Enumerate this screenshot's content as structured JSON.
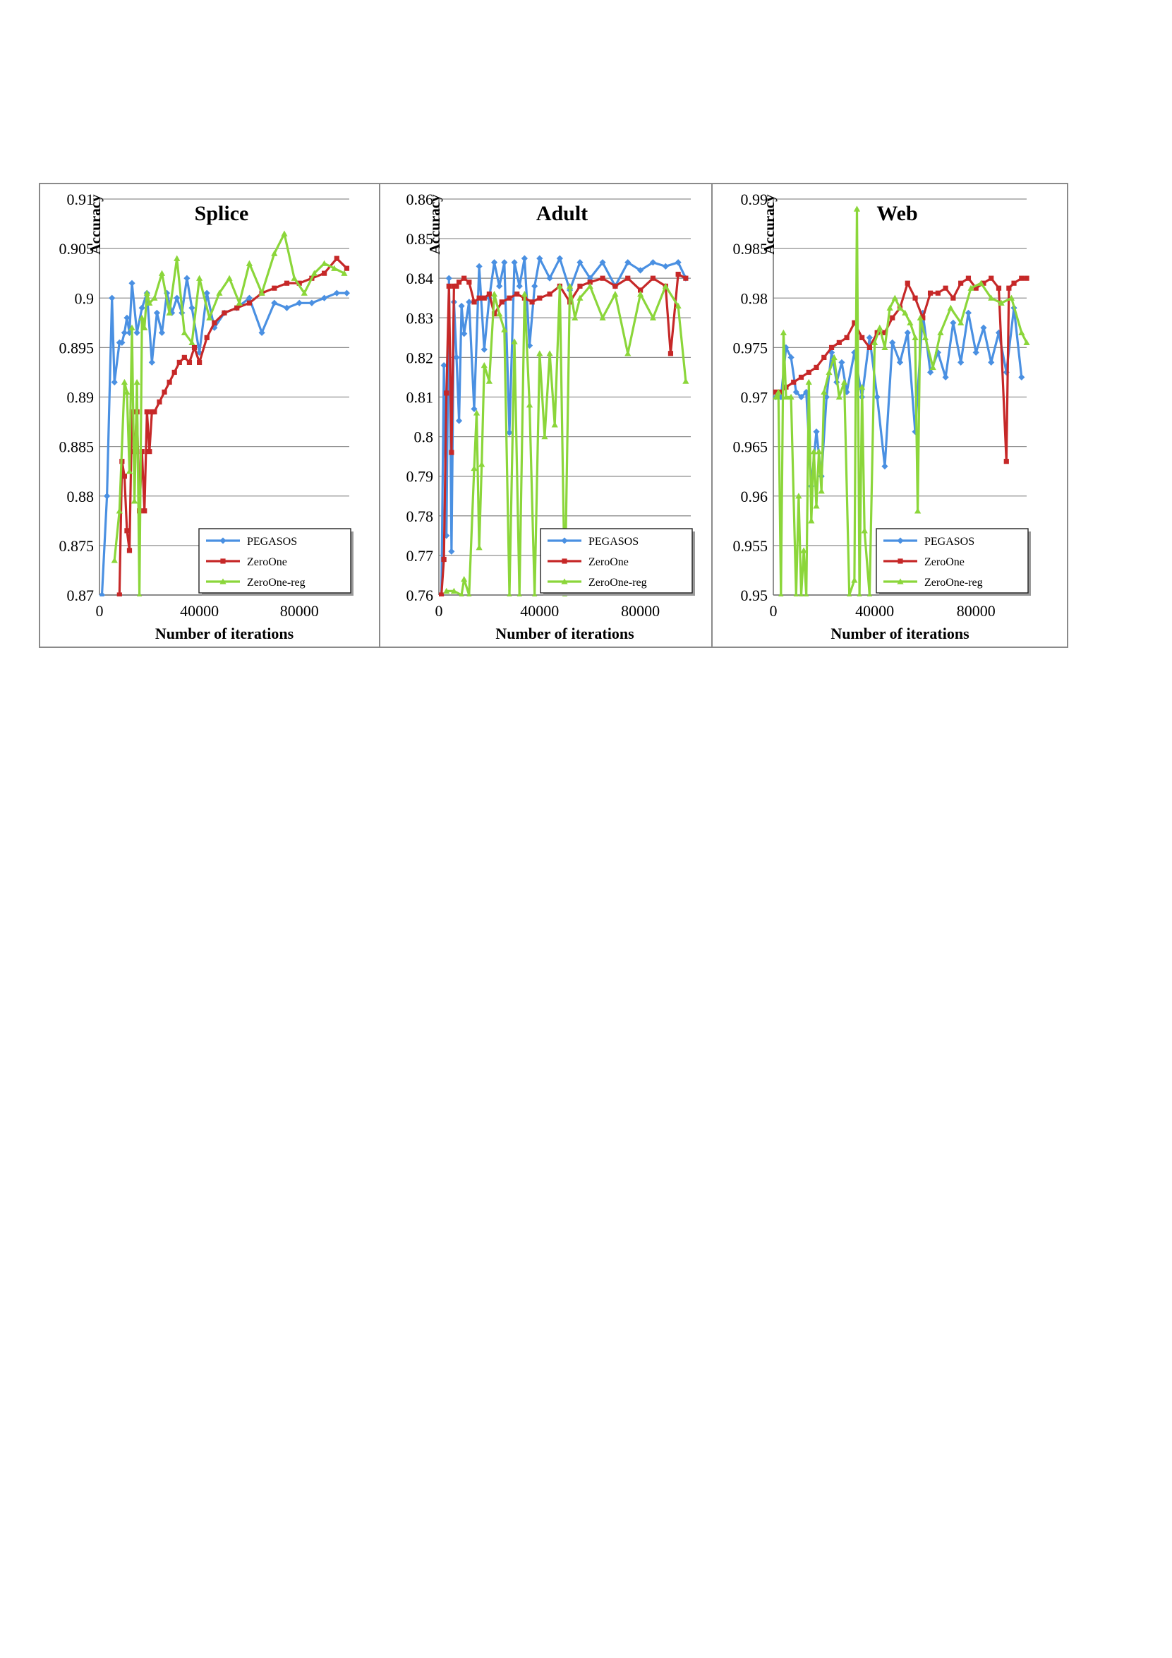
{
  "figure": {
    "chart_data": [
      {
        "type": "line",
        "title": "Splice",
        "xlabel": "Number of iterations",
        "ylabel": "Accuracy",
        "xlim": [
          0,
          100000
        ],
        "ylim": [
          0.87,
          0.91
        ],
        "xticks": [
          0,
          40000,
          80000
        ],
        "xtick_labels": [
          "0",
          "40000",
          "80000"
        ],
        "yticks": [
          0.87,
          0.875,
          0.88,
          0.885,
          0.89,
          0.895,
          0.9,
          0.905,
          0.91
        ],
        "ytick_labels": [
          "0.87",
          "0.875",
          "0.88",
          "0.885",
          "0.89",
          "0.895",
          "0.9",
          "0.905",
          "0.91"
        ],
        "grid": "horizontal",
        "legend": "bottom-right",
        "series": [
          {
            "name": "PEGASOS",
            "color": "#4a90e2",
            "marker": "diamond",
            "x": [
              1000,
              3000,
              5000,
              6000,
              8000,
              9000,
              10000,
              11000,
              12000,
              13000,
              15000,
              17000,
              19000,
              21000,
              23000,
              25000,
              27000,
              29000,
              31000,
              33000,
              35000,
              37000,
              40000,
              43000,
              46000,
              50000,
              55000,
              60000,
              65000,
              70000,
              75000,
              80000,
              85000,
              90000,
              95000,
              99000
            ],
            "y": [
              0.87,
              0.88,
              0.9,
              0.8915,
              0.8955,
              0.8955,
              0.8965,
              0.898,
              0.8965,
              0.9015,
              0.8965,
              0.899,
              0.9005,
              0.8935,
              0.8985,
              0.8965,
              0.9005,
              0.8985,
              0.9,
              0.8985,
              0.902,
              0.899,
              0.8945,
              0.9005,
              0.897,
              0.8985,
              0.899,
              0.9,
              0.8965,
              0.8995,
              0.899,
              0.8995,
              0.8995,
              0.9,
              0.9005,
              0.9005
            ]
          },
          {
            "name": "ZeroOne",
            "color": "#c62828",
            "marker": "square",
            "x": [
              8000,
              9000,
              10000,
              11000,
              12000,
              13000,
              14000,
              15000,
              16000,
              17000,
              18000,
              19000,
              20000,
              21000,
              22000,
              24000,
              26000,
              28000,
              30000,
              32000,
              34000,
              36000,
              38000,
              40000,
              43000,
              46000,
              50000,
              55000,
              60000,
              65000,
              70000,
              75000,
              80000,
              85000,
              90000,
              95000,
              99000
            ],
            "y": [
              0.87,
              0.8835,
              0.882,
              0.8765,
              0.8745,
              0.8885,
              0.8845,
              0.8885,
              0.8785,
              0.8845,
              0.8785,
              0.8885,
              0.8845,
              0.8885,
              0.8885,
              0.8895,
              0.8905,
              0.8915,
              0.8925,
              0.8935,
              0.894,
              0.8935,
              0.895,
              0.8935,
              0.896,
              0.8975,
              0.8985,
              0.899,
              0.8995,
              0.9005,
              0.901,
              0.9015,
              0.9015,
              0.902,
              0.9025,
              0.904,
              0.903
            ]
          },
          {
            "name": "ZeroOne-reg",
            "color": "#8bd63a",
            "marker": "triangle",
            "x": [
              6000,
              8000,
              10000,
              11000,
              12000,
              13000,
              14000,
              15000,
              16000,
              17000,
              18000,
              19000,
              20000,
              22000,
              25000,
              28000,
              31000,
              34000,
              37000,
              40000,
              44000,
              48000,
              52000,
              56000,
              60000,
              65000,
              70000,
              74000,
              78000,
              82000,
              86000,
              90000,
              94000,
              98000
            ],
            "y": [
              0.8735,
              0.8785,
              0.8915,
              0.8905,
              0.8825,
              0.897,
              0.8795,
              0.8915,
              0.87,
              0.898,
              0.897,
              0.9005,
              0.8995,
              0.9,
              0.9025,
              0.8985,
              0.904,
              0.8965,
              0.8955,
              0.902,
              0.898,
              0.9005,
              0.902,
              0.8995,
              0.9035,
              0.9005,
              0.9045,
              0.9065,
              0.902,
              0.9005,
              0.9025,
              0.9035,
              0.903,
              0.9025
            ]
          }
        ],
        "legend_entries": [
          "PEGASOS",
          "ZeroOne",
          "ZeroOne-reg"
        ]
      },
      {
        "type": "line",
        "title": "Adult",
        "xlabel": "Number of iterations",
        "ylabel": "Accuracy",
        "xlim": [
          0,
          100000
        ],
        "ylim": [
          0.76,
          0.86
        ],
        "xticks": [
          0,
          40000,
          80000
        ],
        "xtick_labels": [
          "0",
          "40000",
          "80000"
        ],
        "yticks": [
          0.76,
          0.77,
          0.78,
          0.79,
          0.8,
          0.81,
          0.82,
          0.83,
          0.84,
          0.85,
          0.86
        ],
        "ytick_labels": [
          "0.76",
          "0.77",
          "0.78",
          "0.79",
          "0.8",
          "0.81",
          "0.82",
          "0.83",
          "0.84",
          "0.85",
          "0.86"
        ],
        "grid": "horizontal",
        "legend": "bottom-right",
        "series": [
          {
            "name": "PEGASOS",
            "color": "#4a90e2",
            "marker": "diamond",
            "x": [
              1000,
              2000,
              3000,
              4000,
              5000,
              6000,
              7000,
              8000,
              9000,
              10000,
              12000,
              14000,
              16000,
              18000,
              20000,
              22000,
              24000,
              26000,
              28000,
              30000,
              32000,
              34000,
              36000,
              38000,
              40000,
              44000,
              48000,
              52000,
              56000,
              60000,
              65000,
              70000,
              75000,
              80000,
              85000,
              90000,
              95000,
              98000
            ],
            "y": [
              0.76,
              0.818,
              0.775,
              0.84,
              0.771,
              0.834,
              0.82,
              0.804,
              0.833,
              0.826,
              0.834,
              0.807,
              0.843,
              0.822,
              0.835,
              0.844,
              0.838,
              0.844,
              0.801,
              0.844,
              0.838,
              0.845,
              0.823,
              0.838,
              0.845,
              0.84,
              0.845,
              0.837,
              0.844,
              0.84,
              0.844,
              0.838,
              0.844,
              0.842,
              0.844,
              0.843,
              0.844,
              0.84
            ]
          },
          {
            "name": "ZeroOne",
            "color": "#c62828",
            "marker": "square",
            "x": [
              1000,
              2000,
              3000,
              4000,
              5000,
              6000,
              7000,
              8000,
              10000,
              12000,
              14000,
              16000,
              18000,
              20000,
              22000,
              25000,
              28000,
              31000,
              34000,
              37000,
              40000,
              44000,
              48000,
              52000,
              56000,
              60000,
              65000,
              70000,
              75000,
              80000,
              85000,
              90000,
              92000,
              95000,
              98000
            ],
            "y": [
              0.76,
              0.769,
              0.811,
              0.838,
              0.796,
              0.838,
              0.838,
              0.839,
              0.84,
              0.839,
              0.834,
              0.835,
              0.835,
              0.836,
              0.831,
              0.834,
              0.835,
              0.836,
              0.835,
              0.834,
              0.835,
              0.836,
              0.838,
              0.834,
              0.838,
              0.839,
              0.84,
              0.838,
              0.84,
              0.837,
              0.84,
              0.838,
              0.821,
              0.841,
              0.84
            ]
          },
          {
            "name": "ZeroOne-reg",
            "color": "#8bd63a",
            "marker": "triangle",
            "x": [
              3000,
              6000,
              9000,
              10000,
              12000,
              14000,
              15000,
              16000,
              17000,
              18000,
              20000,
              22000,
              24000,
              26000,
              28000,
              30000,
              32000,
              34000,
              36000,
              38000,
              40000,
              42000,
              44000,
              46000,
              48000,
              50000,
              52000,
              54000,
              56000,
              60000,
              65000,
              70000,
              75000,
              80000,
              85000,
              90000,
              95000,
              98000
            ],
            "y": [
              0.761,
              0.761,
              0.76,
              0.764,
              0.76,
              0.792,
              0.806,
              0.772,
              0.793,
              0.818,
              0.814,
              0.836,
              0.831,
              0.827,
              0.76,
              0.824,
              0.76,
              0.836,
              0.808,
              0.76,
              0.821,
              0.8,
              0.821,
              0.803,
              0.838,
              0.76,
              0.838,
              0.83,
              0.835,
              0.838,
              0.83,
              0.836,
              0.821,
              0.836,
              0.83,
              0.838,
              0.833,
              0.814
            ]
          }
        ],
        "legend_entries": [
          "PEGASOS",
          "ZeroOne",
          "ZeroOne-reg"
        ]
      },
      {
        "type": "line",
        "title": "Web",
        "xlabel": "Number of iterations",
        "ylabel": "Accuracy",
        "xlim": [
          0,
          100000
        ],
        "ylim": [
          0.95,
          0.99
        ],
        "xticks": [
          0,
          40000,
          80000
        ],
        "xtick_labels": [
          "0",
          "40000",
          "80000"
        ],
        "yticks": [
          0.95,
          0.955,
          0.96,
          0.965,
          0.97,
          0.975,
          0.98,
          0.985,
          0.99
        ],
        "ytick_labels": [
          "0.95",
          "0.955",
          "0.96",
          "0.965",
          "0.97",
          "0.975",
          "0.98",
          "0.985",
          "0.99"
        ],
        "grid": "horizontal",
        "legend": "bottom-right",
        "series": [
          {
            "name": "PEGASOS",
            "color": "#4a90e2",
            "marker": "diamond",
            "x": [
              1000,
              3000,
              5000,
              7000,
              9000,
              11000,
              13000,
              15000,
              17000,
              19000,
              21000,
              23000,
              25000,
              27000,
              29000,
              32000,
              35000,
              38000,
              41000,
              44000,
              47000,
              50000,
              53000,
              56000,
              59000,
              62000,
              65000,
              68000,
              71000,
              74000,
              77000,
              80000,
              83000,
              86000,
              89000,
              92000,
              95000,
              98000
            ],
            "y": [
              0.97,
              0.97,
              0.975,
              0.974,
              0.9705,
              0.97,
              0.9705,
              0.961,
              0.9665,
              0.962,
              0.97,
              0.9745,
              0.9715,
              0.9735,
              0.9705,
              0.9745,
              0.97,
              0.976,
              0.97,
              0.963,
              0.9755,
              0.9735,
              0.9765,
              0.9665,
              0.9785,
              0.9725,
              0.9745,
              0.972,
              0.9775,
              0.9735,
              0.9785,
              0.9745,
              0.977,
              0.9735,
              0.9765,
              0.9725,
              0.979,
              0.972
            ]
          },
          {
            "name": "ZeroOne",
            "color": "#c62828",
            "marker": "square",
            "x": [
              1000,
              3000,
              5000,
              8000,
              11000,
              14000,
              17000,
              20000,
              23000,
              26000,
              29000,
              32000,
              35000,
              38000,
              41000,
              44000,
              47000,
              50000,
              53000,
              56000,
              59000,
              62000,
              65000,
              68000,
              71000,
              74000,
              77000,
              80000,
              83000,
              86000,
              89000,
              92000,
              93000,
              95000,
              98000,
              100000
            ],
            "y": [
              0.9705,
              0.9705,
              0.971,
              0.9715,
              0.972,
              0.9725,
              0.973,
              0.974,
              0.975,
              0.9755,
              0.976,
              0.9775,
              0.976,
              0.975,
              0.9765,
              0.9765,
              0.978,
              0.979,
              0.9815,
              0.98,
              0.978,
              0.9805,
              0.9805,
              0.981,
              0.98,
              0.9815,
              0.982,
              0.981,
              0.9815,
              0.982,
              0.981,
              0.9635,
              0.981,
              0.9815,
              0.982,
              0.982
            ]
          },
          {
            "name": "ZeroOne-reg",
            "color": "#8bd63a",
            "marker": "triangle",
            "x": [
              1000,
              2000,
              3000,
              4000,
              5000,
              7000,
              9000,
              10000,
              11000,
              12000,
              13000,
              14000,
              15000,
              16000,
              17000,
              18000,
              19000,
              20000,
              22000,
              24000,
              26000,
              28000,
              30000,
              32000,
              33000,
              34000,
              35000,
              36000,
              38000,
              40000,
              42000,
              44000,
              46000,
              48000,
              50000,
              52000,
              54000,
              56000,
              57000,
              58000,
              60000,
              63000,
              66000,
              70000,
              74000,
              78000,
              82000,
              86000,
              90000,
              94000,
              98000,
              100000
            ],
            "y": [
              0.97,
              0.9705,
              0.95,
              0.9765,
              0.97,
              0.97,
              0.95,
              0.96,
              0.95,
              0.9545,
              0.95,
              0.9715,
              0.9575,
              0.9645,
              0.959,
              0.9645,
              0.9605,
              0.9705,
              0.9725,
              0.974,
              0.97,
              0.9715,
              0.95,
              0.9515,
              0.989,
              0.95,
              0.971,
              0.9565,
              0.95,
              0.9755,
              0.977,
              0.975,
              0.979,
              0.98,
              0.979,
              0.9785,
              0.9775,
              0.976,
              0.9585,
              0.978,
              0.976,
              0.973,
              0.9765,
              0.979,
              0.9775,
              0.981,
              0.9815,
              0.98,
              0.9795,
              0.98,
              0.9765,
              0.9755
            ]
          }
        ],
        "legend_entries": [
          "PEGASOS",
          "ZeroOne",
          "ZeroOne-reg"
        ]
      }
    ]
  }
}
